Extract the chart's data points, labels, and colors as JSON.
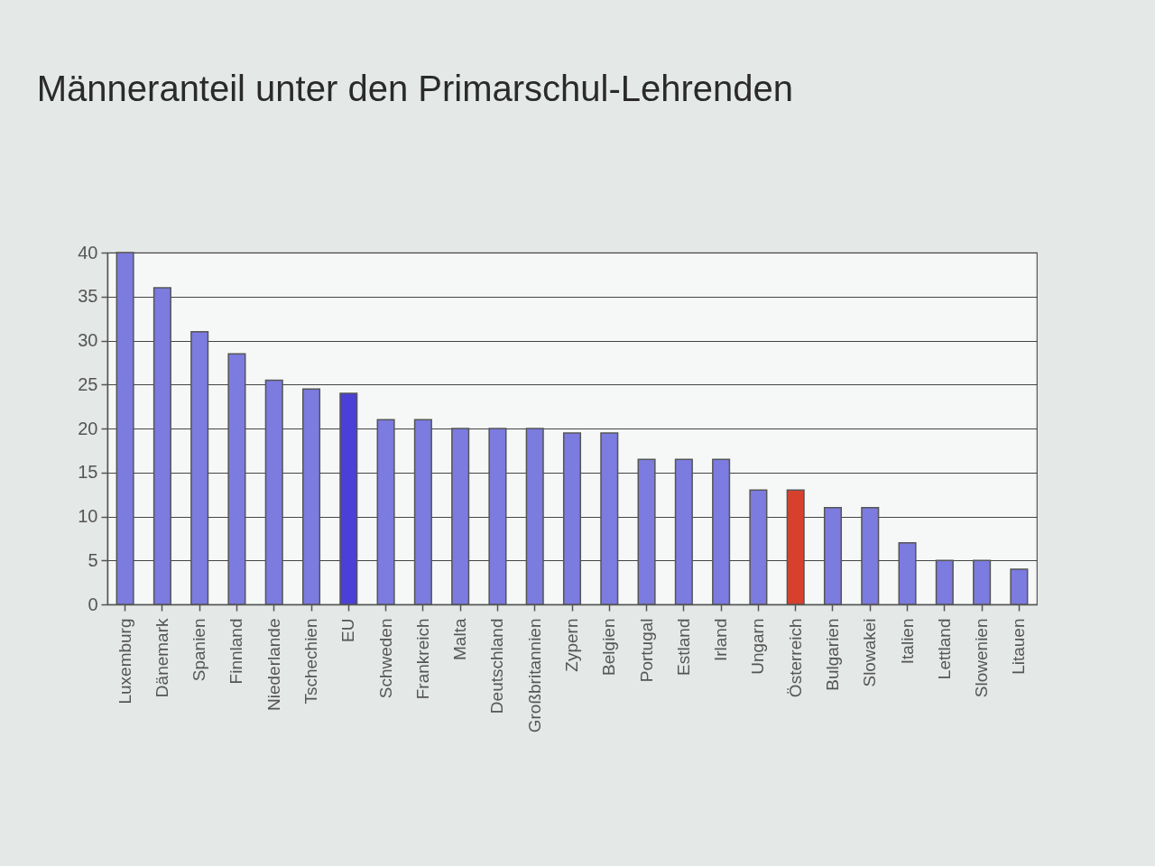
{
  "chart_data": {
    "type": "bar",
    "title": "Männeranteil unter den Primarschul-Lehrenden",
    "categories": [
      "Luxemburg",
      "Dänemark",
      "Spanien",
      "Finnland",
      "Niederlande",
      "Tschechien",
      "EU",
      "Schweden",
      "Frankreich",
      "Malta",
      "Deutschland",
      "Großbritannien",
      "Zypern",
      "Belgien",
      "Portugal",
      "Estland",
      "Irland",
      "Ungarn",
      "Österreich",
      "Bulgarien",
      "Slowakei",
      "Italien",
      "Lettland",
      "Slowenien",
      "Litauen"
    ],
    "values": [
      40,
      36,
      31,
      28.5,
      25.5,
      24.5,
      24,
      21,
      21,
      20,
      20,
      20,
      19.5,
      19.5,
      16.5,
      16.5,
      16.5,
      13,
      13,
      11,
      11,
      7,
      5,
      5,
      4
    ],
    "colors": [
      "#7b7be0",
      "#7b7be0",
      "#7b7be0",
      "#7b7be0",
      "#7b7be0",
      "#7b7be0",
      "#4a3fd6",
      "#7b7be0",
      "#7b7be0",
      "#7b7be0",
      "#7b7be0",
      "#7b7be0",
      "#7b7be0",
      "#7b7be0",
      "#7b7be0",
      "#7b7be0",
      "#7b7be0",
      "#7b7be0",
      "#d8402e",
      "#7b7be0",
      "#7b7be0",
      "#7b7be0",
      "#7b7be0",
      "#7b7be0",
      "#7b7be0"
    ],
    "ylim": [
      0,
      40
    ],
    "yticks": [
      0,
      5,
      10,
      15,
      20,
      25,
      30,
      35,
      40
    ],
    "grid": "y"
  }
}
